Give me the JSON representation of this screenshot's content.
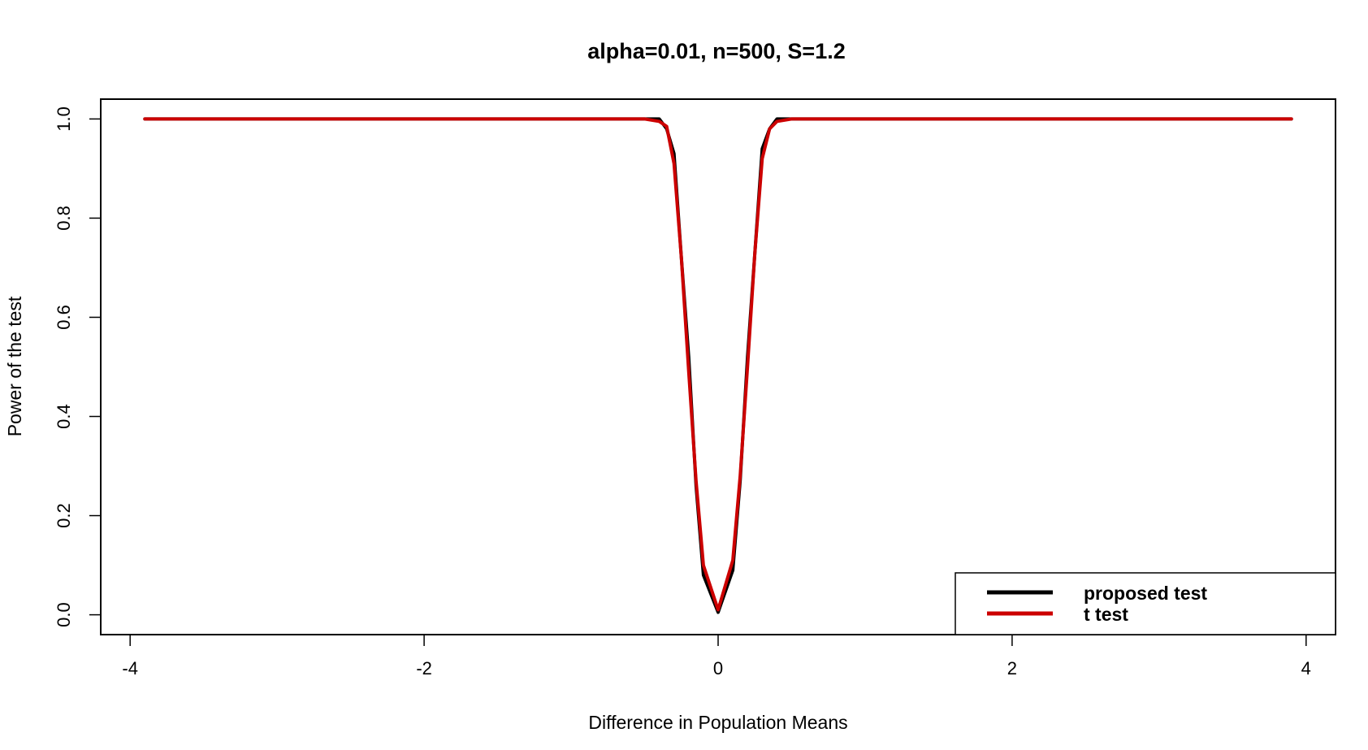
{
  "chart_data": {
    "type": "line",
    "title": "alpha=0.01, n=500, S=1.2",
    "xlabel": "Difference in Population Means",
    "ylabel": "Power of the test",
    "xlim": [
      -4.2,
      4.2
    ],
    "ylim": [
      -0.04,
      1.04
    ],
    "x_ticks": [
      -4,
      -2,
      0,
      2,
      4
    ],
    "x_tick_labels": [
      "-4",
      "-2",
      "0",
      "2",
      "4"
    ],
    "y_ticks": [
      0.0,
      0.2,
      0.4,
      0.6,
      0.8,
      1.0
    ],
    "y_tick_labels": [
      "0.0",
      "0.2",
      "0.4",
      "0.6",
      "0.8",
      "1.0"
    ],
    "grid": false,
    "legend_position": "bottom-right",
    "series": [
      {
        "name": "proposed test",
        "color": "#000000",
        "points": [
          [
            -3.9,
            1.0
          ],
          [
            -0.5,
            1.0
          ],
          [
            -0.4,
            1.0
          ],
          [
            -0.35,
            0.98
          ],
          [
            -0.3,
            0.93
          ],
          [
            -0.25,
            0.72
          ],
          [
            -0.2,
            0.52
          ],
          [
            -0.15,
            0.26
          ],
          [
            -0.1,
            0.08
          ],
          [
            0.0,
            0.005
          ],
          [
            0.1,
            0.09
          ],
          [
            0.15,
            0.27
          ],
          [
            0.2,
            0.52
          ],
          [
            0.25,
            0.73
          ],
          [
            0.3,
            0.94
          ],
          [
            0.35,
            0.98
          ],
          [
            0.4,
            1.0
          ],
          [
            3.9,
            1.0
          ]
        ]
      },
      {
        "name": "t test",
        "color": "#cc0000",
        "points": [
          [
            -3.9,
            1.0
          ],
          [
            -0.5,
            1.0
          ],
          [
            -0.4,
            0.995
          ],
          [
            -0.35,
            0.985
          ],
          [
            -0.3,
            0.91
          ],
          [
            -0.25,
            0.72
          ],
          [
            -0.2,
            0.49
          ],
          [
            -0.15,
            0.27
          ],
          [
            -0.1,
            0.1
          ],
          [
            0.0,
            0.01
          ],
          [
            0.1,
            0.11
          ],
          [
            0.15,
            0.28
          ],
          [
            0.2,
            0.5
          ],
          [
            0.25,
            0.73
          ],
          [
            0.3,
            0.92
          ],
          [
            0.35,
            0.98
          ],
          [
            0.4,
            0.995
          ],
          [
            0.5,
            1.0
          ],
          [
            3.9,
            1.0
          ]
        ]
      }
    ]
  }
}
